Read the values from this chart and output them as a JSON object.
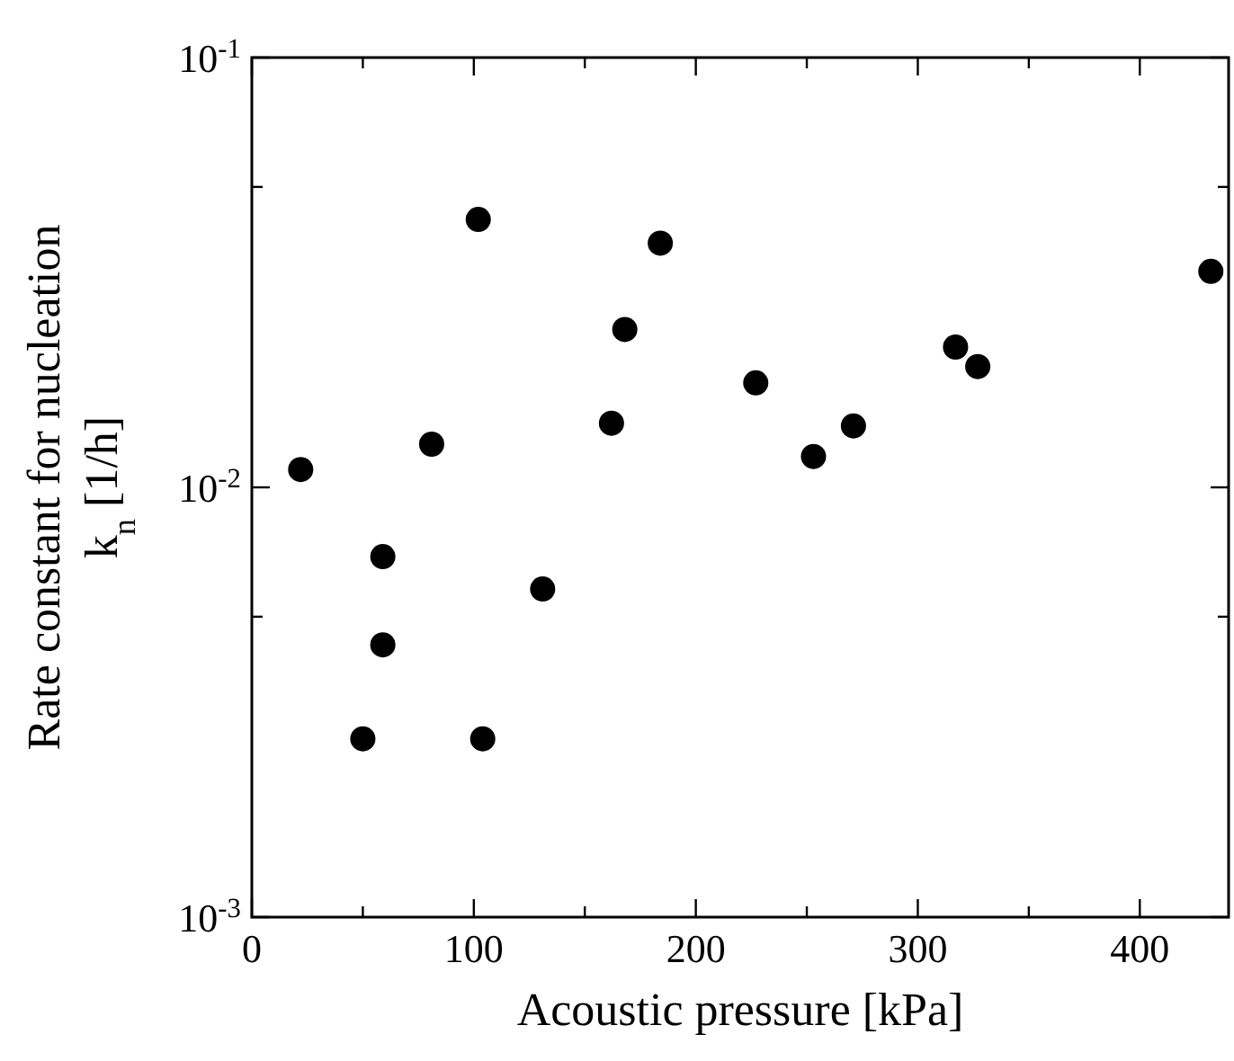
{
  "chart_data": {
    "type": "scatter",
    "xlabel": "Acoustic pressure [kPa]",
    "ylabel": "Rate constant for nucleation\nk$_{n}$ [1/h]",
    "log": "y",
    "marker": "circle",
    "grid": false,
    "xlim": [
      0,
      440
    ],
    "xticks": [
      0,
      {
        "value": 50,
        "label": null
      },
      100,
      {
        "value": 150,
        "label": null
      },
      200,
      {
        "value": 250,
        "label": null
      },
      300,
      {
        "value": 350,
        "label": null
      },
      400
    ],
    "ylim": [
      0.001,
      0.1
    ],
    "yticks": [
      {
        "value": 0.001,
        "label": "10$^{-3}$"
      },
      {
        "value": 0.005,
        "label": null
      },
      {
        "value": 0.01,
        "label": "10$^{-2}$"
      },
      {
        "value": 0.05,
        "label": null
      },
      {
        "value": 0.1,
        "label": "10$^{-1}$"
      }
    ],
    "series": [
      {
        "color": "#000000",
        "x": [
          22,
          50,
          59,
          59,
          81,
          102,
          104,
          131,
          162,
          168,
          184,
          227,
          253,
          271,
          317,
          327,
          432
        ],
        "values": [
          0.011,
          0.0026,
          0.0043,
          0.0069,
          0.0126,
          0.042,
          0.0026,
          0.0058,
          0.0141,
          0.0233,
          0.037,
          0.0175,
          0.0118,
          0.0139,
          0.0212,
          0.0191,
          0.0318
        ]
      }
    ]
  }
}
